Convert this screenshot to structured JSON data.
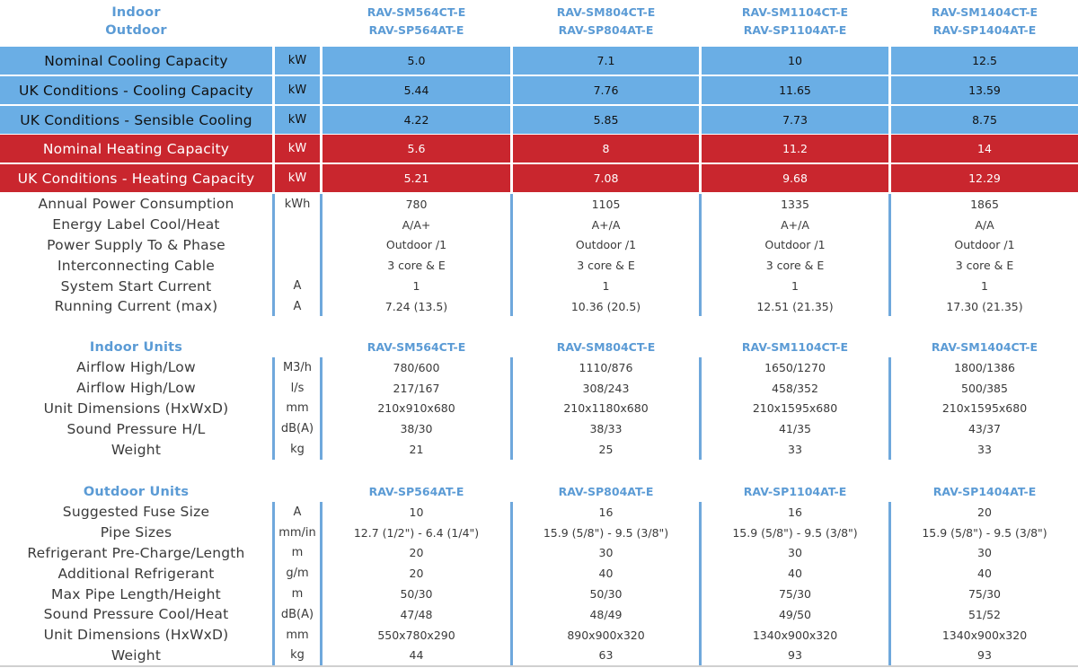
{
  "header": {
    "labels": [
      "Indoor",
      "Outdoor"
    ],
    "models": [
      [
        "RAV-SM564CT-E",
        "RAV-SP564AT-E"
      ],
      [
        "RAV-SM804CT-E",
        "RAV-SP804AT-E"
      ],
      [
        "RAV-SM1104CT-E",
        "RAV-SP1104AT-E"
      ],
      [
        "RAV-SM1404CT-E",
        "RAV-SP1404AT-E"
      ]
    ]
  },
  "colors": {
    "blue_fill": "#6aaee5",
    "red_fill": "#c9262e",
    "separator": "#6fa8dc",
    "heading": "#5b9bd5"
  },
  "highlight_rows": [
    {
      "label": "Nominal Cooling Capacity",
      "unit": "kW",
      "values": [
        "5.0",
        "7.1",
        "10",
        "12.5"
      ],
      "color": "blue"
    },
    {
      "label": "UK Conditions - Cooling Capacity",
      "unit": "kW",
      "values": [
        "5.44",
        "7.76",
        "11.65",
        "13.59"
      ],
      "color": "blue"
    },
    {
      "label": "UK Conditions - Sensible Cooling",
      "unit": "kW",
      "values": [
        "4.22",
        "5.85",
        "7.73",
        "8.75"
      ],
      "color": "blue"
    },
    {
      "label": "Nominal Heating Capacity",
      "unit": "kW",
      "values": [
        "5.6",
        "8",
        "11.2",
        "14"
      ],
      "color": "red"
    },
    {
      "label": "UK Conditions - Heating Capacity",
      "unit": "kW",
      "values": [
        "5.21",
        "7.08",
        "9.68",
        "12.29"
      ],
      "color": "red"
    }
  ],
  "general_rows": [
    {
      "label": "Annual Power Consumption",
      "unit": "kWh",
      "values": [
        "780",
        "1105",
        "1335",
        "1865"
      ]
    },
    {
      "label": "Energy Label Cool/Heat",
      "unit": "",
      "values": [
        "A/A+",
        "A+/A",
        "A+/A",
        "A/A"
      ]
    },
    {
      "label": "Power Supply To & Phase",
      "unit": "",
      "values": [
        "Outdoor /1",
        "Outdoor /1",
        "Outdoor /1",
        "Outdoor /1"
      ]
    },
    {
      "label": "Interconnecting Cable",
      "unit": "",
      "values": [
        "3 core & E",
        "3 core & E",
        "3 core & E",
        "3 core & E"
      ]
    },
    {
      "label": "System Start Current",
      "unit": "A",
      "values": [
        "1",
        "1",
        "1",
        "1"
      ]
    },
    {
      "label": "Running Current (max)",
      "unit": "A",
      "values": [
        "7.24 (13.5)",
        "10.36 (20.5)",
        "12.51 (21.35)",
        "17.30 (21.35)"
      ]
    }
  ],
  "indoor": {
    "heading": "Indoor Units",
    "models": [
      "RAV-SM564CT-E",
      "RAV-SM804CT-E",
      "RAV-SM1104CT-E",
      "RAV-SM1404CT-E"
    ],
    "rows": [
      {
        "label": "Airflow High/Low",
        "unit": "M3/h",
        "values": [
          "780/600",
          "1110/876",
          "1650/1270",
          "1800/1386"
        ]
      },
      {
        "label": "Airflow High/Low",
        "unit": "l/s",
        "values": [
          "217/167",
          "308/243",
          "458/352",
          "500/385"
        ]
      },
      {
        "label": "Unit Dimensions (HxWxD)",
        "unit": "mm",
        "values": [
          "210x910x680",
          "210x1180x680",
          "210x1595x680",
          "210x1595x680"
        ]
      },
      {
        "label": "Sound Pressure H/L",
        "unit": "dB(A)",
        "values": [
          "38/30",
          "38/33",
          "41/35",
          "43/37"
        ]
      },
      {
        "label": "Weight",
        "unit": "kg",
        "values": [
          "21",
          "25",
          "33",
          "33"
        ]
      }
    ]
  },
  "outdoor": {
    "heading": "Outdoor Units",
    "models": [
      "RAV-SP564AT-E",
      "RAV-SP804AT-E",
      "RAV-SP1104AT-E",
      "RAV-SP1404AT-E"
    ],
    "rows": [
      {
        "label": "Suggested Fuse Size",
        "unit": "A",
        "values": [
          "10",
          "16",
          "16",
          "20"
        ]
      },
      {
        "label": "Pipe Sizes",
        "unit": "mm/in",
        "values": [
          "12.7 (1/2\") - 6.4 (1/4\")",
          "15.9 (5/8\") - 9.5 (3/8\")",
          "15.9 (5/8\") - 9.5 (3/8\")",
          "15.9 (5/8\") - 9.5 (3/8\")"
        ]
      },
      {
        "label": "Refrigerant Pre-Charge/Length",
        "unit": "m",
        "values": [
          "20",
          "30",
          "30",
          "30"
        ]
      },
      {
        "label": "Additional Refrigerant",
        "unit": "g/m",
        "values": [
          "20",
          "40",
          "40",
          "40"
        ]
      },
      {
        "label": "Max Pipe Length/Height",
        "unit": "m",
        "values": [
          "50/30",
          "50/30",
          "75/30",
          "75/30"
        ]
      },
      {
        "label": "Sound Pressure Cool/Heat",
        "unit": "dB(A)",
        "values": [
          "47/48",
          "48/49",
          "49/50",
          "51/52"
        ]
      },
      {
        "label": "Unit Dimensions (HxWxD)",
        "unit": "mm",
        "values": [
          "550x780x290",
          "890x900x320",
          "1340x900x320",
          "1340x900x320"
        ]
      },
      {
        "label": "Weight",
        "unit": "kg",
        "values": [
          "44",
          "63",
          "93",
          "93"
        ]
      }
    ]
  }
}
